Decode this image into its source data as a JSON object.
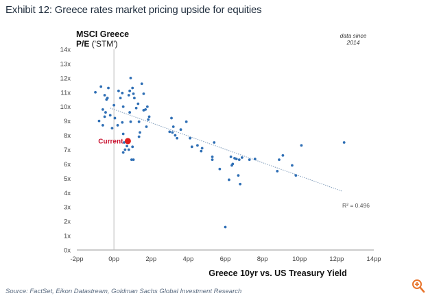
{
  "header": {
    "title": "Exhibit 12: Greece rates market pricing upside for equities"
  },
  "footer": {
    "source": "Source: FactSet, Eikon Datastream, Goldman Sachs Global Investment Research",
    "zoom_icon": "zoom-in-icon"
  },
  "chart_data": {
    "type": "scatter",
    "ylabel_line1": "MSCI Greece",
    "ylabel_line2_bold": "P/E",
    "ylabel_line2_rest": " ('STM')",
    "xlabel": "Greece 10yr vs. US Treasury Yield",
    "annotation_line1": "data since",
    "annotation_line2": "2014",
    "r_squared_label": "R² = 0.496",
    "current_label": "Current",
    "current_point": {
      "x": 0.75,
      "y": 7.6
    },
    "xlim": [
      -2,
      14
    ],
    "ylim": [
      0,
      14
    ],
    "x_ticks": [
      -2,
      0,
      2,
      4,
      6,
      8,
      10,
      12,
      14
    ],
    "x_tick_labels": [
      "-2pp",
      "0pp",
      "2pp",
      "4pp",
      "6pp",
      "8pp",
      "10pp",
      "12pp",
      "14pp"
    ],
    "y_ticks": [
      0,
      1,
      2,
      3,
      4,
      5,
      6,
      7,
      8,
      9,
      10,
      11,
      12,
      13,
      14
    ],
    "y_tick_labels": [
      "0x",
      "1x",
      "2x",
      "3x",
      "4x",
      "5x",
      "6x",
      "7x",
      "8x",
      "9x",
      "10x",
      "11x",
      "12x",
      "13x",
      "14x"
    ],
    "trendline": {
      "x1": -0.2,
      "y1": 9.9,
      "x2": 12.3,
      "y2": 4.1
    },
    "colors": {
      "points": "#2f6fb5",
      "current": "#e01e1e",
      "current_label": "#c8102e",
      "trend": "#8aa4c0",
      "axis": "#9a9a9a",
      "title": "#1f2d3d",
      "source": "#5a6b80"
    },
    "points": [
      {
        "x": -1.0,
        "y": 11.0
      },
      {
        "x": -0.7,
        "y": 11.4
      },
      {
        "x": -0.5,
        "y": 10.8
      },
      {
        "x": -0.4,
        "y": 10.5
      },
      {
        "x": -0.3,
        "y": 11.3
      },
      {
        "x": -0.35,
        "y": 10.6
      },
      {
        "x": -0.6,
        "y": 9.8
      },
      {
        "x": -0.5,
        "y": 9.3
      },
      {
        "x": -0.8,
        "y": 9.0
      },
      {
        "x": -0.6,
        "y": 8.7
      },
      {
        "x": -0.45,
        "y": 9.6
      },
      {
        "x": -0.2,
        "y": 9.4
      },
      {
        "x": -0.1,
        "y": 8.5
      },
      {
        "x": 0.0,
        "y": 10.1
      },
      {
        "x": 0.05,
        "y": 9.2
      },
      {
        "x": 0.2,
        "y": 8.7
      },
      {
        "x": 0.25,
        "y": 11.1
      },
      {
        "x": 0.35,
        "y": 10.6
      },
      {
        "x": 0.45,
        "y": 10.95
      },
      {
        "x": 0.5,
        "y": 10.0
      },
      {
        "x": 0.45,
        "y": 8.9
      },
      {
        "x": 0.5,
        "y": 8.1
      },
      {
        "x": 0.55,
        "y": 7.5
      },
      {
        "x": 0.6,
        "y": 7.0
      },
      {
        "x": 0.5,
        "y": 6.8
      },
      {
        "x": 0.7,
        "y": 7.25
      },
      {
        "x": 0.8,
        "y": 10.8
      },
      {
        "x": 0.85,
        "y": 11.1
      },
      {
        "x": 0.9,
        "y": 12.0
      },
      {
        "x": 1.0,
        "y": 11.3
      },
      {
        "x": 1.05,
        "y": 10.9
      },
      {
        "x": 1.1,
        "y": 10.6
      },
      {
        "x": 0.85,
        "y": 9.6
      },
      {
        "x": 0.9,
        "y": 8.95
      },
      {
        "x": 1.0,
        "y": 7.2
      },
      {
        "x": 0.95,
        "y": 6.3
      },
      {
        "x": 1.05,
        "y": 6.3
      },
      {
        "x": 0.8,
        "y": 7.0
      },
      {
        "x": 1.2,
        "y": 9.9
      },
      {
        "x": 1.3,
        "y": 10.2
      },
      {
        "x": 1.35,
        "y": 8.95
      },
      {
        "x": 1.4,
        "y": 8.2
      },
      {
        "x": 1.5,
        "y": 11.6
      },
      {
        "x": 1.6,
        "y": 10.9
      },
      {
        "x": 1.7,
        "y": 9.8
      },
      {
        "x": 1.75,
        "y": 8.6
      },
      {
        "x": 1.85,
        "y": 9.1
      },
      {
        "x": 1.9,
        "y": 9.3
      },
      {
        "x": 1.35,
        "y": 7.9
      },
      {
        "x": 1.6,
        "y": 9.75
      },
      {
        "x": 1.8,
        "y": 10.0
      },
      {
        "x": 3.1,
        "y": 9.2
      },
      {
        "x": 3.0,
        "y": 8.25
      },
      {
        "x": 3.15,
        "y": 8.2
      },
      {
        "x": 3.2,
        "y": 8.6
      },
      {
        "x": 3.3,
        "y": 8.0
      },
      {
        "x": 3.4,
        "y": 7.8
      },
      {
        "x": 3.6,
        "y": 8.4
      },
      {
        "x": 3.9,
        "y": 8.95
      },
      {
        "x": 4.1,
        "y": 7.8
      },
      {
        "x": 4.2,
        "y": 7.2
      },
      {
        "x": 4.5,
        "y": 7.3
      },
      {
        "x": 4.7,
        "y": 6.9
      },
      {
        "x": 4.75,
        "y": 7.1
      },
      {
        "x": 5.3,
        "y": 6.5
      },
      {
        "x": 5.4,
        "y": 7.5
      },
      {
        "x": 5.3,
        "y": 6.3
      },
      {
        "x": 5.7,
        "y": 5.65
      },
      {
        "x": 6.0,
        "y": 1.6
      },
      {
        "x": 6.3,
        "y": 6.5
      },
      {
        "x": 6.35,
        "y": 5.9
      },
      {
        "x": 6.4,
        "y": 6.0
      },
      {
        "x": 6.5,
        "y": 6.4
      },
      {
        "x": 6.6,
        "y": 6.35
      },
      {
        "x": 6.7,
        "y": 5.2
      },
      {
        "x": 6.8,
        "y": 4.6
      },
      {
        "x": 6.9,
        "y": 6.45
      },
      {
        "x": 6.75,
        "y": 6.3
      },
      {
        "x": 6.2,
        "y": 4.9
      },
      {
        "x": 7.3,
        "y": 6.3
      },
      {
        "x": 7.6,
        "y": 6.35
      },
      {
        "x": 8.9,
        "y": 6.3
      },
      {
        "x": 9.1,
        "y": 6.6
      },
      {
        "x": 8.8,
        "y": 5.5
      },
      {
        "x": 9.6,
        "y": 5.9
      },
      {
        "x": 9.8,
        "y": 5.2
      },
      {
        "x": 10.1,
        "y": 7.3
      },
      {
        "x": 12.4,
        "y": 7.5
      }
    ]
  }
}
